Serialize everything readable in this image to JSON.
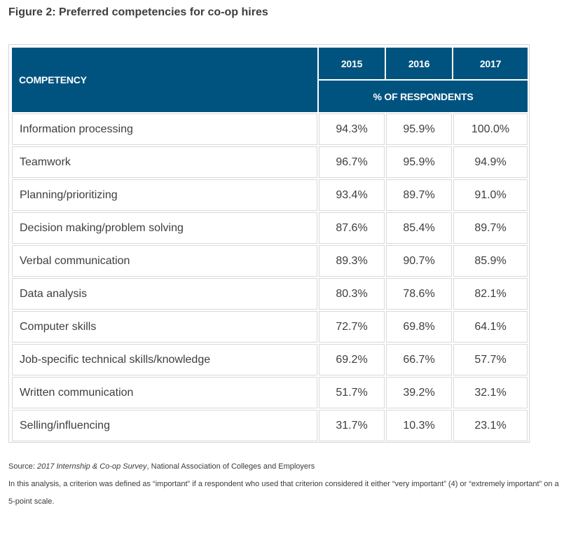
{
  "figure_title": "Figure 2: Preferred competencies for co-op hires",
  "chart_data": {
    "type": "table",
    "title": "Figure 2: Preferred competencies for co-op hires",
    "row_header": "COMPETENCY",
    "columns": [
      "2015",
      "2016",
      "2017"
    ],
    "column_group_label": "% OF RESPONDENTS",
    "rows": [
      {
        "label": "Information processing",
        "values": [
          "94.3%",
          "95.9%",
          "100.0%"
        ]
      },
      {
        "label": "Teamwork",
        "values": [
          "96.7%",
          "95.9%",
          "94.9%"
        ]
      },
      {
        "label": "Planning/prioritizing",
        "values": [
          "93.4%",
          "89.7%",
          "91.0%"
        ]
      },
      {
        "label": "Decision making/problem solving",
        "values": [
          "87.6%",
          "85.4%",
          "89.7%"
        ]
      },
      {
        "label": "Verbal communication",
        "values": [
          "89.3%",
          "90.7%",
          "85.9%"
        ]
      },
      {
        "label": "Data analysis",
        "values": [
          "80.3%",
          "78.6%",
          "82.1%"
        ]
      },
      {
        "label": "Computer skills",
        "values": [
          "72.7%",
          "69.8%",
          "64.1%"
        ]
      },
      {
        "label": "Job-specific technical skills/knowledge",
        "values": [
          "69.2%",
          "66.7%",
          "57.7%"
        ]
      },
      {
        "label": "Written communication",
        "values": [
          "51.7%",
          "39.2%",
          "32.1%"
        ]
      },
      {
        "label": "Selling/influencing",
        "values": [
          "31.7%",
          "10.3%",
          "23.1%"
        ]
      }
    ]
  },
  "source": {
    "prefix": "Source: ",
    "title": "2017 Internship & Co-op Survey",
    "rest": ", National Association of Colleges and Employers"
  },
  "note": "In this analysis, a criterion was defined as “important” if a respondent who used that criterion considered it either “very important” (4) or “extremely important” on a 5-point scale.",
  "colors": {
    "header_bg": "#00537f",
    "header_text": "#ffffff",
    "cell_border": "#d9d9d9"
  }
}
